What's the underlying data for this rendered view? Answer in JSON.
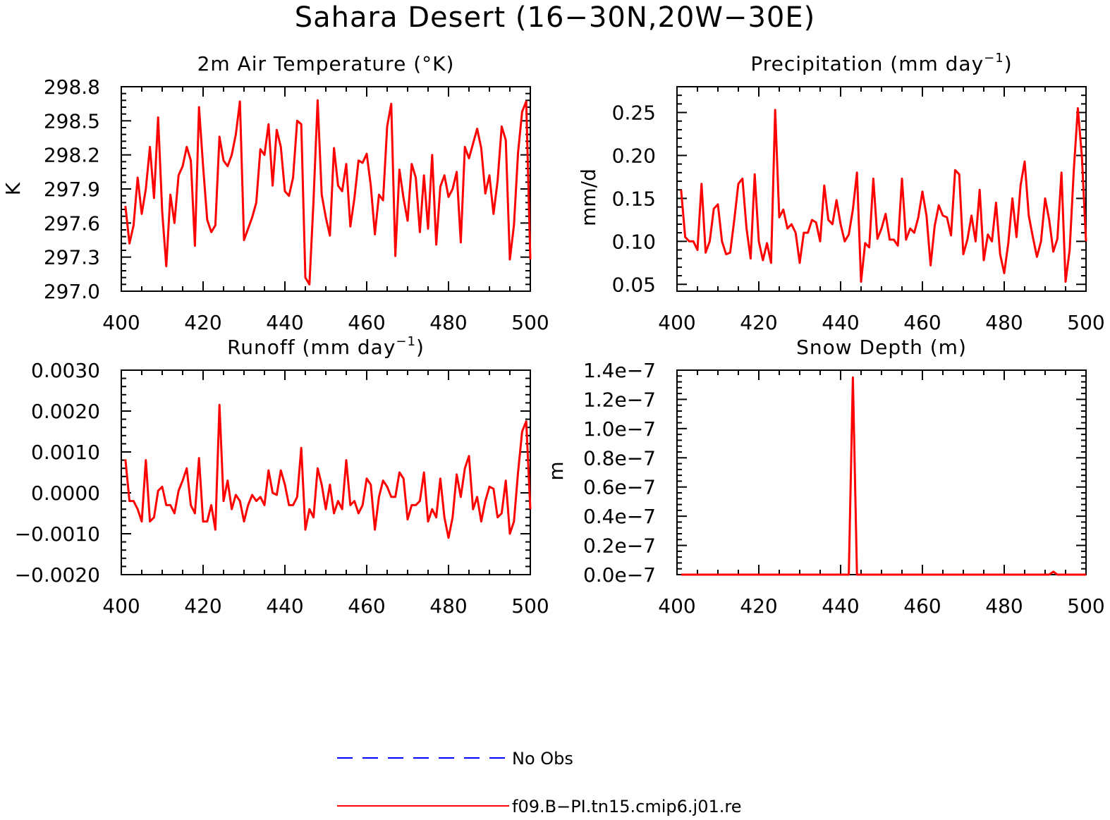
{
  "title": "Sahara Desert (16−30N,20W−30E)",
  "legend": {
    "entries": [
      {
        "label": "No Obs",
        "color": "#0000ff",
        "style": "dashed"
      },
      {
        "label": "f09.B−PI.tn15.cmip6.j01.re",
        "color": "#ff0000",
        "style": "solid"
      }
    ]
  },
  "chart_data": [
    {
      "type": "line",
      "title": "2m Air Temperature (°K)",
      "title_sup": "",
      "title_tail": "",
      "ylabel": "K",
      "xlim": [
        400,
        500
      ],
      "ylim": [
        297.0,
        298.8
      ],
      "xticks": [
        400,
        420,
        440,
        460,
        480,
        500
      ],
      "xtick_labels": [
        "400",
        "420",
        "440",
        "460",
        "480",
        "500"
      ],
      "yticks": [
        297.0,
        297.3,
        297.6,
        297.9,
        298.2,
        298.5,
        298.8
      ],
      "ytick_labels": [
        "297.0",
        "297.3",
        "297.6",
        "297.9",
        "298.2",
        "298.5",
        "298.8"
      ],
      "series": [
        {
          "name": "f09.B−PI.tn15.cmip6.j01.re",
          "color": "#ff0000",
          "x_start": 401,
          "x_step": 1,
          "values": [
            297.75,
            297.42,
            297.58,
            298.0,
            297.68,
            297.9,
            298.27,
            297.82,
            298.53,
            297.7,
            297.22,
            297.85,
            297.6,
            298.02,
            298.1,
            298.27,
            298.15,
            297.4,
            298.62,
            298.1,
            297.63,
            297.52,
            297.58,
            298.36,
            298.15,
            298.1,
            298.2,
            298.38,
            298.67,
            297.45,
            297.55,
            297.65,
            297.78,
            298.25,
            298.2,
            298.47,
            297.93,
            298.42,
            298.27,
            297.88,
            297.84,
            298.0,
            298.5,
            298.47,
            297.12,
            297.06,
            297.8,
            298.68,
            297.85,
            297.65,
            297.49,
            298.26,
            297.93,
            297.88,
            298.12,
            297.57,
            297.82,
            298.15,
            298.13,
            298.21,
            297.93,
            297.5,
            297.85,
            297.8,
            298.45,
            298.65,
            297.31,
            298.07,
            297.82,
            297.62,
            298.12,
            298.0,
            297.52,
            298.02,
            297.55,
            298.2,
            297.41,
            297.92,
            298.02,
            297.83,
            297.9,
            298.05,
            297.43,
            298.27,
            298.17,
            298.3,
            298.43,
            298.26,
            297.86,
            298.02,
            297.68,
            297.97,
            298.45,
            298.33,
            297.28,
            297.58,
            298.22,
            298.58,
            298.67,
            297.28
          ]
        }
      ]
    },
    {
      "type": "line",
      "title": "Precipitation (mm day",
      "title_sup": "−1",
      "title_tail": ")",
      "ylabel": "mm/d",
      "xlim": [
        400,
        500
      ],
      "ylim": [
        0.042,
        0.28
      ],
      "xticks": [
        400,
        420,
        440,
        460,
        480,
        500
      ],
      "xtick_labels": [
        "400",
        "420",
        "440",
        "460",
        "480",
        "500"
      ],
      "yticks": [
        0.05,
        0.1,
        0.15,
        0.2,
        0.25
      ],
      "ytick_labels": [
        "0.05",
        "0.10",
        "0.15",
        "0.20",
        "0.25"
      ],
      "series": [
        {
          "name": "f09.B−PI.tn15.cmip6.j01.re",
          "color": "#ff0000",
          "x_start": 401,
          "x_step": 1,
          "values": [
            0.16,
            0.105,
            0.1,
            0.1,
            0.09,
            0.167,
            0.087,
            0.1,
            0.138,
            0.143,
            0.1,
            0.085,
            0.087,
            0.125,
            0.167,
            0.173,
            0.115,
            0.08,
            0.178,
            0.1,
            0.078,
            0.098,
            0.075,
            0.253,
            0.128,
            0.137,
            0.115,
            0.12,
            0.11,
            0.075,
            0.11,
            0.11,
            0.125,
            0.122,
            0.1,
            0.165,
            0.125,
            0.12,
            0.148,
            0.12,
            0.1,
            0.108,
            0.137,
            0.18,
            0.053,
            0.098,
            0.093,
            0.173,
            0.103,
            0.115,
            0.132,
            0.102,
            0.102,
            0.095,
            0.173,
            0.102,
            0.115,
            0.11,
            0.128,
            0.158,
            0.13,
            0.072,
            0.118,
            0.142,
            0.13,
            0.128,
            0.107,
            0.183,
            0.178,
            0.085,
            0.102,
            0.13,
            0.1,
            0.16,
            0.078,
            0.108,
            0.1,
            0.145,
            0.085,
            0.063,
            0.098,
            0.15,
            0.105,
            0.165,
            0.193,
            0.13,
            0.105,
            0.082,
            0.1,
            0.15,
            0.125,
            0.088,
            0.103,
            0.18,
            0.053,
            0.09,
            0.182,
            0.255,
            0.198,
            0.1
          ]
        }
      ]
    },
    {
      "type": "line",
      "title": "Runoff (mm day",
      "title_sup": "−1",
      "title_tail": ")",
      "ylabel": "",
      "xlim": [
        400,
        500
      ],
      "ylim": [
        -0.002,
        0.003
      ],
      "xticks": [
        400,
        420,
        440,
        460,
        480,
        500
      ],
      "xtick_labels": [
        "400",
        "420",
        "440",
        "460",
        "480",
        "500"
      ],
      "yticks": [
        -0.002,
        -0.001,
        0.0,
        0.001,
        0.002,
        0.003
      ],
      "ytick_labels": [
        "−0.0020",
        "−0.0010",
        "0.0000",
        "0.0010",
        "0.0020",
        "0.0030"
      ],
      "series": [
        {
          "name": "f09.B−PI.tn15.cmip6.j01.re",
          "color": "#ff0000",
          "x_start": 401,
          "x_step": 1,
          "values": [
            0.00082,
            -0.0002,
            -0.0002,
            -0.0004,
            -0.0007,
            0.0008,
            -0.0007,
            -0.0006,
            5e-05,
            0.00015,
            -0.0003,
            -0.0003,
            -0.0005,
            5e-05,
            0.0003,
            0.0006,
            -0.0003,
            -0.0005,
            0.00085,
            -0.0007,
            -0.0007,
            -0.0003,
            -0.0009,
            0.00215,
            -0.0002,
            0.0003,
            -0.0004,
            -5e-05,
            -0.0002,
            -0.0007,
            -0.0003,
            -5e-05,
            -0.0002,
            -0.0001,
            -0.0003,
            0.00055,
            0.0,
            -5e-05,
            0.00055,
            0.0002,
            -0.0003,
            -0.0003,
            -0.0001,
            0.0011,
            -0.0009,
            -0.0004,
            -0.0006,
            0.0006,
            0.0002,
            -0.0004,
            0.0002,
            -0.0005,
            -0.0002,
            -0.0004,
            0.0008,
            -0.0003,
            -0.0002,
            -0.0005,
            -0.0003,
            0.00035,
            0.0002,
            -0.0009,
            -0.0001,
            0.0003,
            0.00015,
            -0.0001,
            -0.0001,
            0.0005,
            0.00035,
            -0.00065,
            -0.0003,
            -0.0003,
            -0.0002,
            0.0005,
            -0.0007,
            -0.0004,
            -0.0006,
            0.00035,
            -0.0006,
            -0.0011,
            -0.0006,
            0.00045,
            -0.0001,
            0.0006,
            0.0009,
            -0.0004,
            -0.0001,
            -0.0007,
            -0.0002,
            0.00015,
            0.0001,
            -0.0006,
            -0.0005,
            0.0003,
            -0.001,
            -0.0007,
            0.0005,
            0.0015,
            0.00175,
            -0.0004
          ]
        }
      ]
    },
    {
      "type": "line",
      "title": "Snow Depth (m)",
      "title_sup": "",
      "title_tail": "",
      "ylabel": "m",
      "xlim": [
        400,
        500
      ],
      "ylim": [
        0.0,
        1.4e-07
      ],
      "xticks": [
        400,
        420,
        440,
        460,
        480,
        500
      ],
      "xtick_labels": [
        "400",
        "420",
        "440",
        "460",
        "480",
        "500"
      ],
      "yticks": [
        0.0,
        2e-08,
        4e-08,
        6e-08,
        8e-08,
        1e-07,
        1.2e-07,
        1.4e-07
      ],
      "ytick_labels": [
        "0.0e−7",
        "0.2e−7",
        "0.4e−7",
        "0.6e−7",
        "0.8e−7",
        "1.0e−7",
        "1.2e−7",
        "1.4e−7"
      ],
      "series": [
        {
          "name": "f09.B−PI.tn15.cmip6.j01.re",
          "color": "#ff0000",
          "x_start": 401,
          "x_step": 1,
          "values": [
            0,
            0,
            0,
            0,
            0,
            0,
            0,
            0,
            0,
            0,
            0,
            0,
            0,
            0,
            0,
            0,
            0,
            0,
            0,
            0,
            0,
            0,
            0,
            0,
            0,
            0,
            0,
            0,
            0,
            0,
            0,
            0,
            0,
            0,
            0,
            0,
            0,
            0,
            0,
            0,
            0,
            0,
            1.35e-07,
            0,
            0,
            0,
            0,
            0,
            0,
            0,
            0,
            0,
            0,
            0,
            0,
            0,
            0,
            0,
            0,
            0,
            0,
            0,
            0,
            0,
            0,
            0,
            0,
            0,
            0,
            0,
            0,
            0,
            0,
            0,
            0,
            0,
            0,
            0,
            0,
            0,
            0,
            0,
            0,
            0,
            0,
            0,
            0,
            0,
            0,
            0,
            0,
            2e-09,
            0,
            0,
            0,
            0,
            0,
            0,
            0,
            0
          ]
        }
      ]
    }
  ]
}
